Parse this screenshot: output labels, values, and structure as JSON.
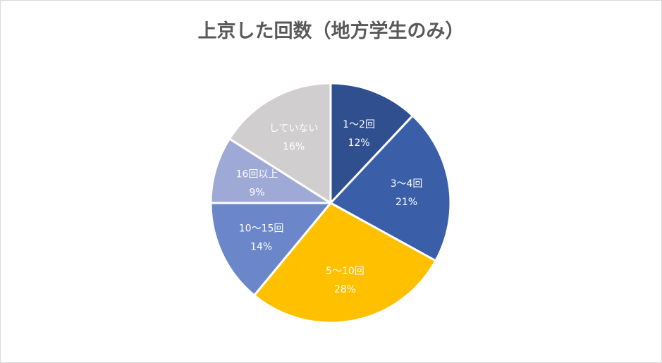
{
  "chart_data": {
    "type": "pie",
    "title": "上京した回数（地方学生のみ）",
    "slices": [
      {
        "label": "1～2回",
        "value": 12,
        "value_label": "12%",
        "color": "#2f4f8f",
        "text_color": "#ffffff"
      },
      {
        "label": "3～4回",
        "value": 21,
        "value_label": "21%",
        "color": "#3a5fa8",
        "text_color": "#ffffff"
      },
      {
        "label": "5～10回",
        "value": 28,
        "value_label": "28%",
        "color": "#ffc000",
        "text_color": "#ffffff"
      },
      {
        "label": "10～15回",
        "value": 14,
        "value_label": "14%",
        "color": "#6b86c9",
        "text_color": "#ffffff"
      },
      {
        "label": "16回以上",
        "value": 9,
        "value_label": "9%",
        "color": "#9ea9d6",
        "text_color": "#ffffff"
      },
      {
        "label": "していない",
        "value": 16,
        "value_label": "16%",
        "color": "#d0cece",
        "text_color": "#ffffff"
      }
    ],
    "start_angle": "12 o'clock",
    "direction": "clockwise",
    "legend": "none",
    "data_labels": "inside"
  }
}
